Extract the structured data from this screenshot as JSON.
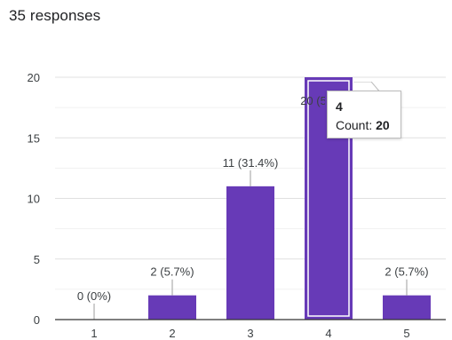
{
  "header": {
    "responses": "35 responses"
  },
  "colors": {
    "bar": "#673ab7",
    "bar_highlight_stroke": "#ffffff",
    "gridline": "#e0e0e0",
    "axis": "#333333",
    "text": "#3c4043"
  },
  "chart_data": {
    "type": "bar",
    "categories": [
      "1",
      "2",
      "3",
      "4",
      "5"
    ],
    "values": [
      0,
      2,
      11,
      20,
      2
    ],
    "data_labels": [
      "0 (0%)",
      "2 (5.7%)",
      "11 (31.4%)",
      "20 (57.1%)",
      "2 (5.7%)"
    ],
    "yticks": [
      0,
      5,
      10,
      15,
      20
    ],
    "ylim": [
      0,
      20
    ],
    "grid": true,
    "highlighted_index": 3
  },
  "tooltip": {
    "category": "4",
    "count_label": "Count: ",
    "count_value": "20"
  }
}
